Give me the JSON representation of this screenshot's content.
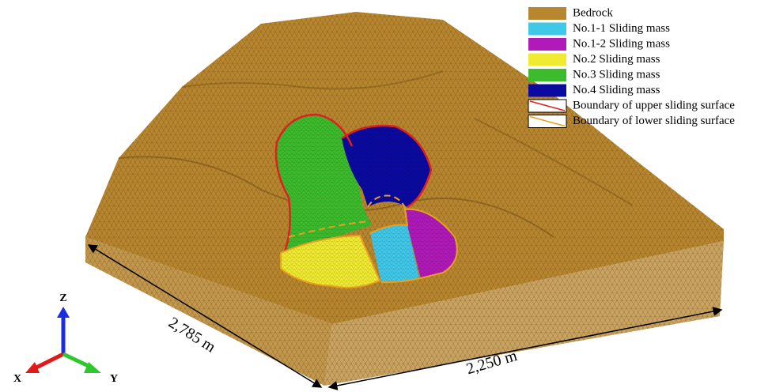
{
  "legend": [
    {
      "label": "Bedrock",
      "color": "#b8862e"
    },
    {
      "label": "No.1-1 Sliding mass",
      "color": "#40c8e8"
    },
    {
      "label": "No.1-2 Sliding mass",
      "color": "#b01ab8"
    },
    {
      "label": "No.2 Sliding mass",
      "color": "#f0ea30"
    },
    {
      "label": "No.3 Sliding mass",
      "color": "#3cbc2c"
    },
    {
      "label": "No.4 Sliding mass",
      "color": "#0a0aa0"
    },
    {
      "label": "Boundary of upper sliding surface",
      "color": "#e02020"
    },
    {
      "label": "Boundary of lower sliding surface",
      "color": "#e8a020"
    }
  ],
  "dimensions": {
    "length": "2,785 m",
    "width": "2,250 m"
  },
  "axes": {
    "x": "X",
    "y": "Y",
    "z": "Z"
  }
}
